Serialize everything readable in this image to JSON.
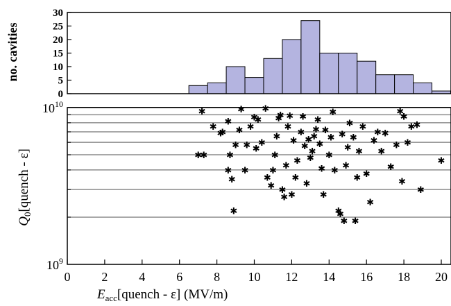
{
  "chart_data": [
    {
      "type": "bar",
      "panel": "histogram",
      "ylabel": "no. cavities",
      "ylim": [
        0,
        30
      ],
      "yticks": [
        "0",
        "5",
        "10",
        "15",
        "20",
        "25",
        "30"
      ],
      "bins": [
        {
          "x0": 6.5,
          "x1": 7.5,
          "count": 3
        },
        {
          "x0": 7.5,
          "x1": 8.5,
          "count": 4
        },
        {
          "x0": 8.5,
          "x1": 9.5,
          "count": 10
        },
        {
          "x0": 9.5,
          "x1": 10.5,
          "count": 6
        },
        {
          "x0": 10.5,
          "x1": 11.5,
          "count": 13
        },
        {
          "x0": 11.5,
          "x1": 12.5,
          "count": 20
        },
        {
          "x0": 12.5,
          "x1": 13.5,
          "count": 27
        },
        {
          "x0": 13.5,
          "x1": 14.5,
          "count": 15
        },
        {
          "x0": 14.5,
          "x1": 15.5,
          "count": 15
        },
        {
          "x0": 15.5,
          "x1": 16.5,
          "count": 12
        },
        {
          "x0": 16.5,
          "x1": 17.5,
          "count": 7
        },
        {
          "x0": 17.5,
          "x1": 18.5,
          "count": 7
        },
        {
          "x0": 18.5,
          "x1": 19.5,
          "count": 4
        },
        {
          "x0": 19.5,
          "x1": 20.5,
          "count": 1
        }
      ],
      "bar_color": "#b4b4e0"
    },
    {
      "type": "scatter",
      "panel": "scatter",
      "xlabel_main": "E",
      "xlabel_sub": "acc",
      "xlabel_rest": "[quench - ε]  (MV/m)",
      "ylabel_main": "Q",
      "ylabel_sub": "0",
      "ylabel_rest": "[quench - ε]",
      "xlim": [
        0,
        20
      ],
      "xticks": [
        "0",
        "2",
        "4",
        "6",
        "8",
        "10",
        "12",
        "14",
        "16",
        "18",
        "20"
      ],
      "ylim": [
        1000000000.0,
        10000000000.0
      ],
      "yscale": "log",
      "ytick_labels": [
        {
          "base": "10",
          "exp": "10"
        },
        {
          "base": "10",
          "exp": "9"
        }
      ],
      "grid_y": [
        2000000000.0,
        3000000000.0,
        4000000000.0,
        5000000000.0,
        6000000000.0,
        7000000000.0,
        8000000000.0,
        9000000000.0,
        10000000000.0
      ],
      "marker": "✱",
      "points": [
        [
          7.0,
          5000000000.0
        ],
        [
          7.3,
          5000000000.0
        ],
        [
          7.2,
          9500000000.0
        ],
        [
          7.8,
          7600000000.0
        ],
        [
          8.2,
          6900000000.0
        ],
        [
          8.3,
          7000000000.0
        ],
        [
          8.6,
          8200000000.0
        ],
        [
          8.9,
          2200000000.0
        ],
        [
          8.8,
          3500000000.0
        ],
        [
          8.6,
          4000000000.0
        ],
        [
          8.7,
          5000000000.0
        ],
        [
          9.0,
          5800000000.0
        ],
        [
          9.2,
          7200000000.0
        ],
        [
          9.3,
          9800000000.0
        ],
        [
          9.5,
          4000000000.0
        ],
        [
          9.6,
          5800000000.0
        ],
        [
          9.8,
          7600000000.0
        ],
        [
          10.0,
          8700000000.0
        ],
        [
          10.2,
          8400000000.0
        ],
        [
          10.1,
          5500000000.0
        ],
        [
          10.4,
          6000000000.0
        ],
        [
          10.6,
          9900000000.0
        ],
        [
          10.7,
          3600000000.0
        ],
        [
          10.9,
          3200000000.0
        ],
        [
          11.0,
          4000000000.0
        ],
        [
          11.2,
          6600000000.0
        ],
        [
          11.3,
          8600000000.0
        ],
        [
          11.4,
          9000000000.0
        ],
        [
          11.1,
          5000000000.0
        ],
        [
          11.5,
          3000000000.0
        ],
        [
          11.6,
          2700000000.0
        ],
        [
          11.7,
          4300000000.0
        ],
        [
          11.8,
          7600000000.0
        ],
        [
          11.9,
          8900000000.0
        ],
        [
          12.1,
          6200000000.0
        ],
        [
          12.0,
          2800000000.0
        ],
        [
          12.2,
          3600000000.0
        ],
        [
          12.3,
          4600000000.0
        ],
        [
          12.5,
          7000000000.0
        ],
        [
          12.6,
          8800000000.0
        ],
        [
          12.7,
          5700000000.0
        ],
        [
          12.8,
          3300000000.0
        ],
        [
          12.9,
          6300000000.0
        ],
        [
          13.0,
          4800000000.0
        ],
        [
          13.1,
          5300000000.0
        ],
        [
          13.2,
          6600000000.0
        ],
        [
          13.3,
          7300000000.0
        ],
        [
          13.4,
          8400000000.0
        ],
        [
          13.5,
          5900000000.0
        ],
        [
          13.6,
          4100000000.0
        ],
        [
          13.7,
          2800000000.0
        ],
        [
          13.8,
          7200000000.0
        ],
        [
          14.0,
          5000000000.0
        ],
        [
          14.1,
          6500000000.0
        ],
        [
          14.2,
          9400000000.0
        ],
        [
          14.3,
          4000000000.0
        ],
        [
          14.5,
          2200000000.0
        ],
        [
          14.6,
          2100000000.0
        ],
        [
          14.7,
          6800000000.0
        ],
        [
          14.8,
          1900000000.0
        ],
        [
          14.9,
          4300000000.0
        ],
        [
          15.0,
          5600000000.0
        ],
        [
          15.1,
          8000000000.0
        ],
        [
          15.3,
          6500000000.0
        ],
        [
          15.4,
          1900000000.0
        ],
        [
          15.5,
          3600000000.0
        ],
        [
          15.6,
          5300000000.0
        ],
        [
          15.8,
          7600000000.0
        ],
        [
          16.0,
          3800000000.0
        ],
        [
          16.2,
          2500000000.0
        ],
        [
          16.4,
          6200000000.0
        ],
        [
          16.6,
          7000000000.0
        ],
        [
          16.8,
          5300000000.0
        ],
        [
          17.0,
          6900000000.0
        ],
        [
          17.3,
          4200000000.0
        ],
        [
          17.6,
          5800000000.0
        ],
        [
          17.8,
          9500000000.0
        ],
        [
          17.9,
          3400000000.0
        ],
        [
          18.0,
          8800000000.0
        ],
        [
          18.2,
          6000000000.0
        ],
        [
          18.4,
          7600000000.0
        ],
        [
          18.7,
          7800000000.0
        ],
        [
          18.9,
          3000000000.0
        ],
        [
          20.0,
          4600000000.0
        ]
      ]
    }
  ]
}
